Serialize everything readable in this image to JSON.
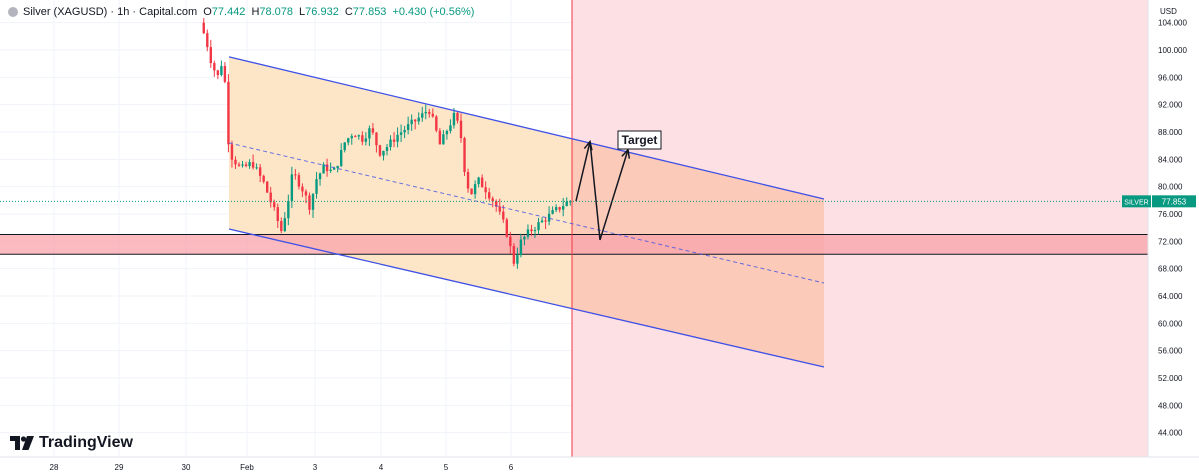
{
  "header": {
    "title": "Silver (XAGUSD) · 1h · Capital.com",
    "open_label": "O",
    "open": "77.442",
    "high_label": "H",
    "high": "78.078",
    "low_label": "L",
    "low": "76.932",
    "close_label": "C",
    "close": "77.853",
    "change": "+0.430 (+0.56%)"
  },
  "currency": "USD",
  "brand": "TradingView",
  "colors": {
    "up": "#089981",
    "down": "#f23645",
    "channel_line": "#3f51e6",
    "channel_fill": "#fde2bd",
    "projection_fill": "#fcc5b0",
    "zone_fill": "#f8a3ab",
    "future_bg": "#fde0e3",
    "now_line": "#f23645",
    "price_label_bg": "#089981"
  },
  "chart_data": {
    "type": "candlestick",
    "symbol": "Silver (XAGUSD)",
    "interval": "1h",
    "y_unit": "USD",
    "ylim": [
      42,
      106
    ],
    "price_ticks": [
      "104.000",
      "100.000",
      "96.000",
      "92.000",
      "88.000",
      "84.000",
      "80.000",
      "76.000",
      "72.000",
      "68.000",
      "64.000",
      "60.000",
      "56.000",
      "52.000",
      "48.000",
      "44.000"
    ],
    "x_ticks": [
      "28",
      "29",
      "30",
      "Feb",
      "3",
      "4",
      "5",
      "6"
    ],
    "current_price": {
      "label": "SILVER",
      "value": 77.853
    },
    "support_zone": {
      "top": 73.0,
      "bottom": 70.1
    },
    "channel": {
      "upper": {
        "from": [
          "30",
          99.0
        ],
        "to": [
          "8",
          78.2
        ]
      },
      "lower": {
        "from": [
          "30",
          73.8
        ],
        "to": [
          "8",
          53.6
        ]
      },
      "midline": "dashed"
    },
    "annotation": {
      "text": "Target",
      "path_prices": [
        77.9,
        86.6,
        72.2,
        85.4
      ]
    },
    "price_path": [
      [
        29.6,
        104.0
      ],
      [
        29.7,
        101.5
      ],
      [
        29.8,
        98.0
      ],
      [
        29.9,
        96.0
      ],
      [
        30.0,
        99.0
      ],
      [
        30.1,
        85.0
      ],
      [
        30.3,
        82.5
      ],
      [
        30.5,
        83.5
      ],
      [
        30.7,
        80.5
      ],
      [
        30.9,
        76.0
      ],
      [
        31.0,
        73.5
      ],
      [
        31.1,
        77.0
      ],
      [
        31.2,
        82.0
      ],
      [
        31.35,
        80.0
      ],
      [
        31.5,
        77.0
      ],
      [
        31.6,
        81.0
      ],
      [
        31.75,
        83.0
      ],
      [
        31.9,
        82.0
      ],
      [
        32.0,
        84.0
      ],
      [
        32.1,
        86.5
      ],
      [
        32.25,
        88.0
      ],
      [
        32.4,
        87.0
      ],
      [
        32.55,
        88.5
      ],
      [
        32.7,
        85.0
      ],
      [
        32.85,
        86.0
      ],
      [
        33.0,
        87.5
      ],
      [
        33.15,
        88.5
      ],
      [
        33.3,
        89.5
      ],
      [
        33.45,
        90.5
      ],
      [
        33.55,
        91.5
      ],
      [
        33.65,
        89.0
      ],
      [
        33.75,
        86.0
      ],
      [
        33.85,
        88.0
      ],
      [
        34.0,
        90.5
      ],
      [
        34.1,
        88.0
      ],
      [
        34.2,
        80.5
      ],
      [
        34.3,
        79.0
      ],
      [
        34.4,
        81.0
      ],
      [
        34.55,
        79.5
      ],
      [
        34.7,
        77.5
      ],
      [
        34.85,
        74.5
      ],
      [
        34.95,
        72.0
      ],
      [
        35.0,
        68.5
      ],
      [
        35.05,
        69.5
      ],
      [
        35.15,
        72.0
      ],
      [
        35.3,
        73.5
      ],
      [
        35.45,
        74.5
      ],
      [
        35.6,
        75.5
      ],
      [
        35.75,
        76.5
      ],
      [
        35.9,
        77.5
      ],
      [
        36.0,
        77.9
      ]
    ]
  }
}
